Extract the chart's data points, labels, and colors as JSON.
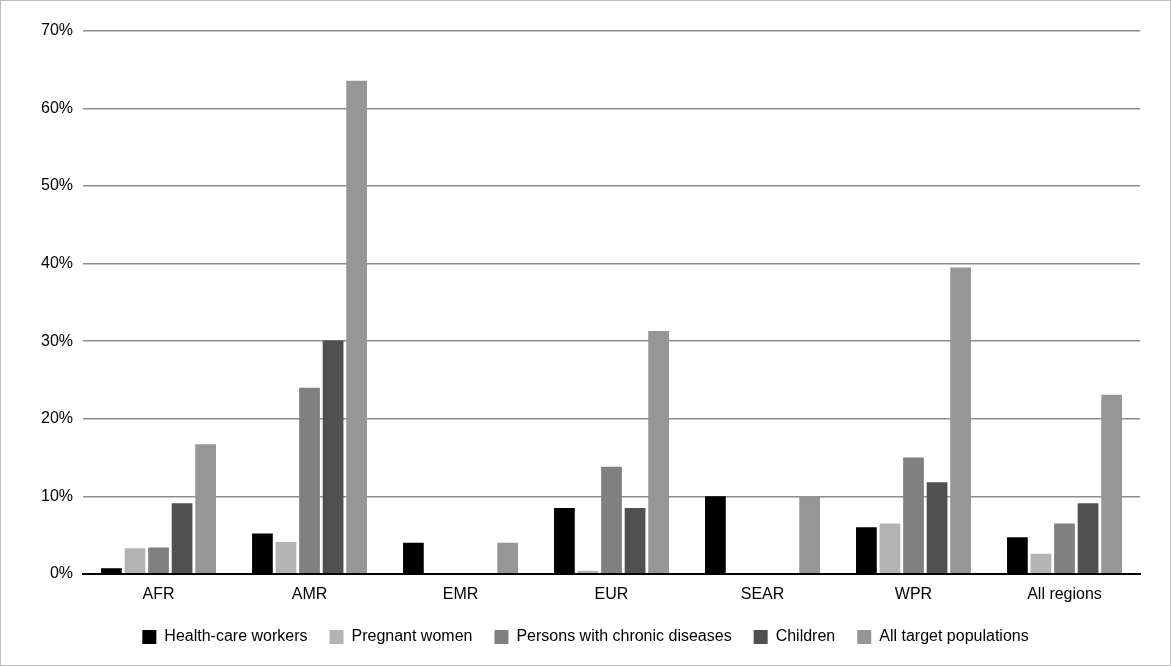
{
  "chart_data": {
    "type": "bar",
    "categories": [
      "AFR",
      "AMR",
      "EMR",
      "EUR",
      "SEAR",
      "WPR",
      "All regions"
    ],
    "series": [
      {
        "name": "Health-care workers",
        "color": "#000000",
        "values": [
          0.7,
          5.2,
          4.0,
          8.5,
          10.0,
          6.0,
          4.7
        ]
      },
      {
        "name": "Pregnant women",
        "color": "#b3b3b3",
        "values": [
          3.3,
          4.1,
          0,
          0.4,
          0,
          6.5,
          2.6
        ]
      },
      {
        "name": "Persons with chronic diseases",
        "color": "#808080",
        "values": [
          3.4,
          24.0,
          0,
          13.8,
          0,
          15.0,
          6.5
        ]
      },
      {
        "name": "Children",
        "color": "#505050",
        "values": [
          9.1,
          30.1,
          0,
          8.5,
          0,
          11.8,
          9.1
        ]
      },
      {
        "name": "All target populations",
        "color": "#969696",
        "values": [
          16.7,
          63.6,
          4.0,
          31.3,
          10.0,
          39.5,
          23.1
        ]
      }
    ],
    "ylim": [
      0,
      70
    ],
    "yticks": [
      {
        "value": 0,
        "label": "0%"
      },
      {
        "value": 10,
        "label": "10%"
      },
      {
        "value": 20,
        "label": "20%"
      },
      {
        "value": 30,
        "label": "30%"
      },
      {
        "value": 40,
        "label": "40%"
      },
      {
        "value": 50,
        "label": "50%"
      },
      {
        "value": 60,
        "label": "60%"
      },
      {
        "value": 70,
        "label": "70%"
      }
    ],
    "grid": "y",
    "legend": "bottom"
  }
}
